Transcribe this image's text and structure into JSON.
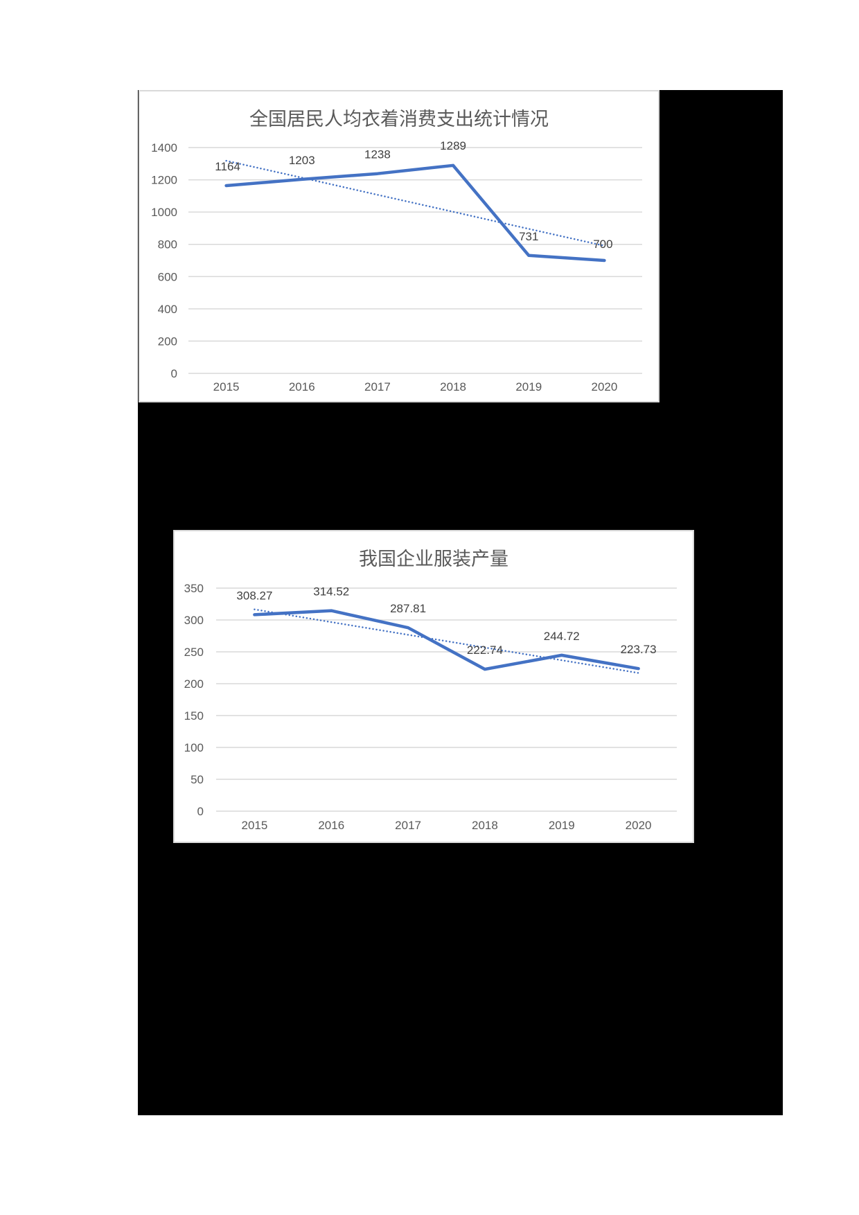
{
  "page": {
    "background": "#ffffff",
    "redaction_color": "#000000"
  },
  "chart_data": [
    {
      "type": "line",
      "title": "全国居民人均衣着消费支出统计情况",
      "categories": [
        "2015",
        "2016",
        "2017",
        "2018",
        "2019",
        "2020"
      ],
      "series": [
        {
          "name": "人均衣着消费支出",
          "values": [
            1164,
            1203,
            1238,
            1289,
            731,
            700
          ],
          "color": "#4472C4",
          "style": "solid"
        },
        {
          "name": "线性趋势线",
          "values": [
            1318,
            1213,
            1107,
            1002,
            896,
            791
          ],
          "color": "#4472C4",
          "style": "dotted"
        }
      ],
      "data_labels": [
        "1164",
        "1203",
        "1238",
        "1289",
        "731",
        "700"
      ],
      "yticks": [
        "0",
        "200",
        "400",
        "600",
        "800",
        "1000",
        "1200",
        "1400"
      ],
      "ylim": [
        0,
        1400
      ],
      "xlabel": "",
      "ylabel": "",
      "grid": true,
      "legend": "none"
    },
    {
      "type": "line",
      "title": "我国企业服装产量",
      "categories": [
        "2015",
        "2016",
        "2017",
        "2018",
        "2019",
        "2020"
      ],
      "series": [
        {
          "name": "服装产量",
          "values": [
            308.27,
            314.52,
            287.81,
            222.74,
            244.72,
            223.73
          ],
          "color": "#4472C4",
          "style": "solid"
        },
        {
          "name": "线性趋势线",
          "values": [
            316.6,
            296.6,
            276.7,
            256.7,
            236.8,
            216.8
          ],
          "color": "#4472C4",
          "style": "dotted"
        }
      ],
      "data_labels": [
        "308.27",
        "314.52",
        "287.81",
        "222.74",
        "244.72",
        "223.73"
      ],
      "yticks": [
        "0",
        "50",
        "100",
        "150",
        "200",
        "250",
        "300",
        "350"
      ],
      "ylim": [
        0,
        350
      ],
      "xlabel": "",
      "ylabel": "",
      "grid": true,
      "legend": "none"
    }
  ]
}
